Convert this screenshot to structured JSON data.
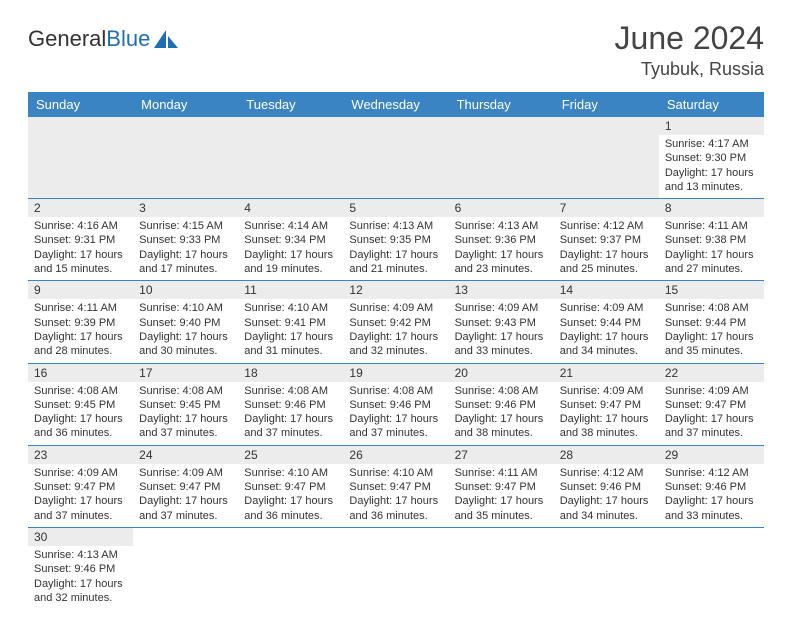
{
  "logo": {
    "text1": "General",
    "text2": "Blue"
  },
  "title": "June 2024",
  "location": "Tyubuk, Russia",
  "colors": {
    "header_bg": "#3b84c4",
    "header_text": "#ffffff",
    "daynum_bg": "#ececec",
    "border": "#3b84c4",
    "text": "#333333"
  },
  "weekdays": [
    "Sunday",
    "Monday",
    "Tuesday",
    "Wednesday",
    "Thursday",
    "Friday",
    "Saturday"
  ],
  "weeks": [
    [
      null,
      null,
      null,
      null,
      null,
      null,
      {
        "d": "1",
        "sr": "Sunrise: 4:17 AM",
        "ss": "Sunset: 9:30 PM",
        "dl": "Daylight: 17 hours and 13 minutes."
      }
    ],
    [
      {
        "d": "2",
        "sr": "Sunrise: 4:16 AM",
        "ss": "Sunset: 9:31 PM",
        "dl": "Daylight: 17 hours and 15 minutes."
      },
      {
        "d": "3",
        "sr": "Sunrise: 4:15 AM",
        "ss": "Sunset: 9:33 PM",
        "dl": "Daylight: 17 hours and 17 minutes."
      },
      {
        "d": "4",
        "sr": "Sunrise: 4:14 AM",
        "ss": "Sunset: 9:34 PM",
        "dl": "Daylight: 17 hours and 19 minutes."
      },
      {
        "d": "5",
        "sr": "Sunrise: 4:13 AM",
        "ss": "Sunset: 9:35 PM",
        "dl": "Daylight: 17 hours and 21 minutes."
      },
      {
        "d": "6",
        "sr": "Sunrise: 4:13 AM",
        "ss": "Sunset: 9:36 PM",
        "dl": "Daylight: 17 hours and 23 minutes."
      },
      {
        "d": "7",
        "sr": "Sunrise: 4:12 AM",
        "ss": "Sunset: 9:37 PM",
        "dl": "Daylight: 17 hours and 25 minutes."
      },
      {
        "d": "8",
        "sr": "Sunrise: 4:11 AM",
        "ss": "Sunset: 9:38 PM",
        "dl": "Daylight: 17 hours and 27 minutes."
      }
    ],
    [
      {
        "d": "9",
        "sr": "Sunrise: 4:11 AM",
        "ss": "Sunset: 9:39 PM",
        "dl": "Daylight: 17 hours and 28 minutes."
      },
      {
        "d": "10",
        "sr": "Sunrise: 4:10 AM",
        "ss": "Sunset: 9:40 PM",
        "dl": "Daylight: 17 hours and 30 minutes."
      },
      {
        "d": "11",
        "sr": "Sunrise: 4:10 AM",
        "ss": "Sunset: 9:41 PM",
        "dl": "Daylight: 17 hours and 31 minutes."
      },
      {
        "d": "12",
        "sr": "Sunrise: 4:09 AM",
        "ss": "Sunset: 9:42 PM",
        "dl": "Daylight: 17 hours and 32 minutes."
      },
      {
        "d": "13",
        "sr": "Sunrise: 4:09 AM",
        "ss": "Sunset: 9:43 PM",
        "dl": "Daylight: 17 hours and 33 minutes."
      },
      {
        "d": "14",
        "sr": "Sunrise: 4:09 AM",
        "ss": "Sunset: 9:44 PM",
        "dl": "Daylight: 17 hours and 34 minutes."
      },
      {
        "d": "15",
        "sr": "Sunrise: 4:08 AM",
        "ss": "Sunset: 9:44 PM",
        "dl": "Daylight: 17 hours and 35 minutes."
      }
    ],
    [
      {
        "d": "16",
        "sr": "Sunrise: 4:08 AM",
        "ss": "Sunset: 9:45 PM",
        "dl": "Daylight: 17 hours and 36 minutes."
      },
      {
        "d": "17",
        "sr": "Sunrise: 4:08 AM",
        "ss": "Sunset: 9:45 PM",
        "dl": "Daylight: 17 hours and 37 minutes."
      },
      {
        "d": "18",
        "sr": "Sunrise: 4:08 AM",
        "ss": "Sunset: 9:46 PM",
        "dl": "Daylight: 17 hours and 37 minutes."
      },
      {
        "d": "19",
        "sr": "Sunrise: 4:08 AM",
        "ss": "Sunset: 9:46 PM",
        "dl": "Daylight: 17 hours and 37 minutes."
      },
      {
        "d": "20",
        "sr": "Sunrise: 4:08 AM",
        "ss": "Sunset: 9:46 PM",
        "dl": "Daylight: 17 hours and 38 minutes."
      },
      {
        "d": "21",
        "sr": "Sunrise: 4:09 AM",
        "ss": "Sunset: 9:47 PM",
        "dl": "Daylight: 17 hours and 38 minutes."
      },
      {
        "d": "22",
        "sr": "Sunrise: 4:09 AM",
        "ss": "Sunset: 9:47 PM",
        "dl": "Daylight: 17 hours and 37 minutes."
      }
    ],
    [
      {
        "d": "23",
        "sr": "Sunrise: 4:09 AM",
        "ss": "Sunset: 9:47 PM",
        "dl": "Daylight: 17 hours and 37 minutes."
      },
      {
        "d": "24",
        "sr": "Sunrise: 4:09 AM",
        "ss": "Sunset: 9:47 PM",
        "dl": "Daylight: 17 hours and 37 minutes."
      },
      {
        "d": "25",
        "sr": "Sunrise: 4:10 AM",
        "ss": "Sunset: 9:47 PM",
        "dl": "Daylight: 17 hours and 36 minutes."
      },
      {
        "d": "26",
        "sr": "Sunrise: 4:10 AM",
        "ss": "Sunset: 9:47 PM",
        "dl": "Daylight: 17 hours and 36 minutes."
      },
      {
        "d": "27",
        "sr": "Sunrise: 4:11 AM",
        "ss": "Sunset: 9:47 PM",
        "dl": "Daylight: 17 hours and 35 minutes."
      },
      {
        "d": "28",
        "sr": "Sunrise: 4:12 AM",
        "ss": "Sunset: 9:46 PM",
        "dl": "Daylight: 17 hours and 34 minutes."
      },
      {
        "d": "29",
        "sr": "Sunrise: 4:12 AM",
        "ss": "Sunset: 9:46 PM",
        "dl": "Daylight: 17 hours and 33 minutes."
      }
    ],
    [
      {
        "d": "30",
        "sr": "Sunrise: 4:13 AM",
        "ss": "Sunset: 9:46 PM",
        "dl": "Daylight: 17 hours and 32 minutes."
      },
      null,
      null,
      null,
      null,
      null,
      null
    ]
  ]
}
